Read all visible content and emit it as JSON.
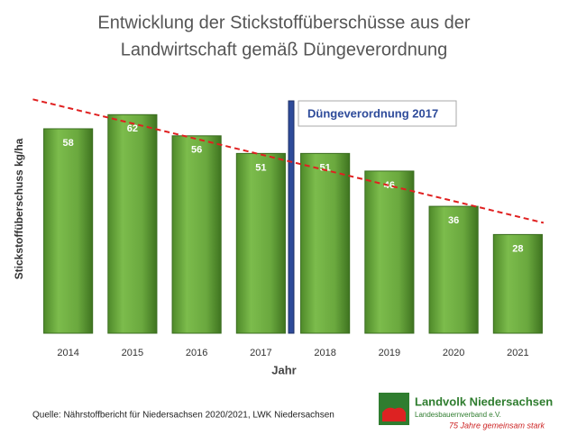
{
  "chart_data": {
    "type": "bar",
    "title": [
      "Entwicklung der Stickstoffüberschüsse aus der",
      "Landwirtschaft gemäß Düngeverordnung"
    ],
    "categories": [
      "2014",
      "2015",
      "2016",
      "2017",
      "2018",
      "2019",
      "2020",
      "2021"
    ],
    "values": [
      58,
      62,
      56,
      51,
      51,
      46,
      36,
      28
    ],
    "color": "#6aa83e",
    "ylim": [
      0,
      70
    ],
    "x_label": "Jahr",
    "y_label": "Stickstoffüberschuss kg/ha",
    "trend_line": {
      "color": "#e02020"
    },
    "annotation": {
      "text": "Düngeverordnung  2017",
      "color": "#2e4b9a"
    },
    "source": "Quelle: Nährstoffbericht für Niedersachsen 2020/2021, LWK Niedersachsen",
    "logo": {
      "name": "Landvolk Niedersachsen",
      "subtitle": "Landesbauernverband e.V.",
      "slogan": "75 Jahre gemeinsam stark"
    }
  }
}
